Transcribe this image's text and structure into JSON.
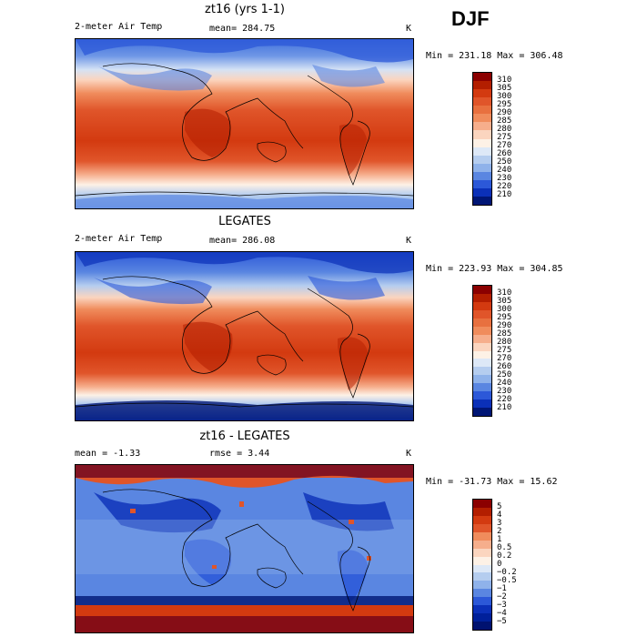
{
  "season": "DJF",
  "panels": [
    {
      "title": "zt16 (yrs 1-1)",
      "left_label": "2-meter Air Temp",
      "stat1": "mean= 284.75",
      "stat2": "",
      "units": "K",
      "minmax": "Min = 231.18 Max = 306.48",
      "colorbar_labels": [
        "310",
        "305",
        "300",
        "295",
        "290",
        "285",
        "280",
        "275",
        "270",
        "260",
        "250",
        "240",
        "230",
        "220",
        "210"
      ],
      "colorbar_colors": [
        "#8b0000",
        "#b31e00",
        "#d33a10",
        "#e0552a",
        "#e8703f",
        "#f08c5c",
        "#f6ae8c",
        "#fbd5bf",
        "#fdf1e6",
        "#dde8f7",
        "#b5cdef",
        "#8fb2ea",
        "#5a86e1",
        "#2c58d8",
        "#0b30b8",
        "#001675"
      ]
    },
    {
      "title": "LEGATES",
      "left_label": "2-meter Air Temp",
      "stat1": "mean= 286.08",
      "stat2": "",
      "units": "K",
      "minmax": "Min = 223.93 Max = 304.85",
      "colorbar_labels": [
        "310",
        "305",
        "300",
        "295",
        "290",
        "285",
        "280",
        "275",
        "270",
        "260",
        "250",
        "240",
        "230",
        "220",
        "210"
      ],
      "colorbar_colors": [
        "#8b0000",
        "#b31e00",
        "#d33a10",
        "#e0552a",
        "#e8703f",
        "#f08c5c",
        "#f6ae8c",
        "#fbd5bf",
        "#fdf1e6",
        "#dde8f7",
        "#b5cdef",
        "#8fb2ea",
        "#5a86e1",
        "#2c58d8",
        "#0b30b8",
        "#001675"
      ]
    },
    {
      "title": "zt16 - LEGATES",
      "left_label": "mean =   -1.33",
      "stat1": "rmse =    3.44",
      "stat2": "",
      "units": "K",
      "minmax": "Min = -31.73 Max =  15.62",
      "colorbar_labels": [
        "5",
        "4",
        "3",
        "2",
        "1",
        "0.5",
        "0.2",
        "0",
        "−0.2",
        "−0.5",
        "−1",
        "−2",
        "−3",
        "−4",
        "−5"
      ],
      "colorbar_colors": [
        "#8b0000",
        "#b31e00",
        "#d33a10",
        "#e0552a",
        "#f08c5c",
        "#f6ae8c",
        "#fbd5bf",
        "#fdf1e6",
        "#dde8f7",
        "#b5cdef",
        "#8fb2ea",
        "#5a86e1",
        "#2c58d8",
        "#0b30b8",
        "#00209a",
        "#001270"
      ]
    }
  ]
}
